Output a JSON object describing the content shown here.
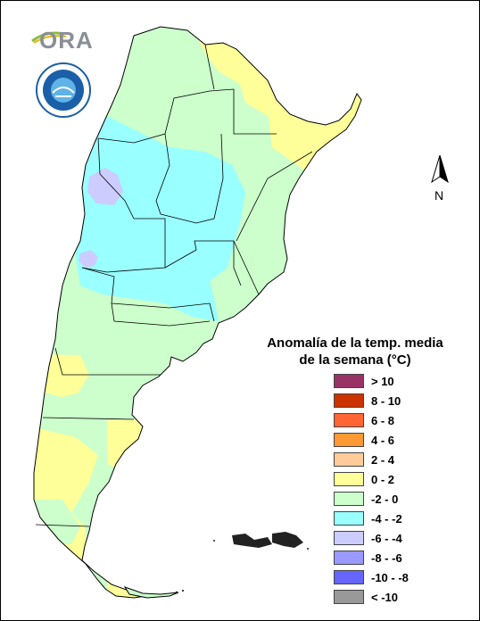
{
  "legend": {
    "title_line1": "Anomalía de la temp. media",
    "title_line2": "de la semana (°C)",
    "items": [
      {
        "label": "> 10",
        "color": "#993366"
      },
      {
        "label": "8 - 10",
        "color": "#cc3300"
      },
      {
        "label": "6 - 8",
        "color": "#ff6633"
      },
      {
        "label": "4 - 6",
        "color": "#ff9933"
      },
      {
        "label": "2 - 4",
        "color": "#ffcc99"
      },
      {
        "label": "0 - 2",
        "color": "#ffff99"
      },
      {
        "label": "-2 - 0",
        "color": "#ccffcc"
      },
      {
        "label": "-4 - -2",
        "color": "#99ffff"
      },
      {
        "label": "-6 - -4",
        "color": "#ccccff"
      },
      {
        "label": "-8 - -6",
        "color": "#9999ff"
      },
      {
        "label": "-10 - -8",
        "color": "#6666ff"
      },
      {
        "label": "< -10",
        "color": "#999999"
      }
    ]
  },
  "north_arrow": {
    "letter": "N"
  },
  "logos": {
    "ora": "ORA",
    "smn": "Servicio Meteorológico Nacional"
  }
}
